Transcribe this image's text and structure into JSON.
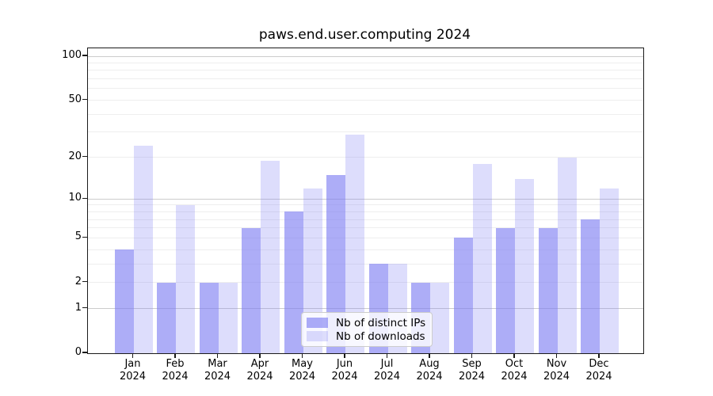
{
  "chart_data": {
    "type": "bar",
    "title": "paws.end.user.computing 2024",
    "categories": [
      "Jan",
      "Feb",
      "Mar",
      "Apr",
      "May",
      "Jun",
      "Jul",
      "Aug",
      "Sep",
      "Oct",
      "Nov",
      "Dec"
    ],
    "x_tick_year": "2024",
    "series": [
      {
        "name": "Nb of distinct IPs",
        "key": "distinct-ips",
        "values": [
          4,
          2,
          2,
          6,
          8,
          15,
          3,
          2,
          5,
          6,
          6,
          7
        ],
        "color": "rgba(123,123,242,0.62)"
      },
      {
        "name": "Nb of downloads",
        "key": "downloads",
        "values": [
          24,
          9,
          2,
          19,
          12,
          29,
          3,
          2,
          18,
          14,
          20,
          12
        ],
        "color": "rgba(123,123,242,0.26)"
      }
    ],
    "y_axis": {
      "scale": "log10(value+1)",
      "ticks": [
        0,
        1,
        2,
        5,
        10,
        20,
        50,
        100
      ],
      "top_value": 113
    },
    "grid": {
      "major": [
        1,
        10,
        100
      ],
      "minor": [
        2,
        3,
        4,
        5,
        6,
        7,
        8,
        9,
        20,
        30,
        40,
        50,
        60,
        70,
        80,
        90
      ],
      "major_color": "#cccccc",
      "minor_color": "#eeeeee"
    },
    "legend": {
      "position": "lower center",
      "entries": [
        "Nb of distinct IPs",
        "Nb of downloads"
      ]
    },
    "colors": {
      "ips_bar": "rgba(123,123,242,0.62)",
      "downloads_bar": "rgba(123,123,242,0.26)",
      "spine": "#1a1a1a"
    }
  }
}
